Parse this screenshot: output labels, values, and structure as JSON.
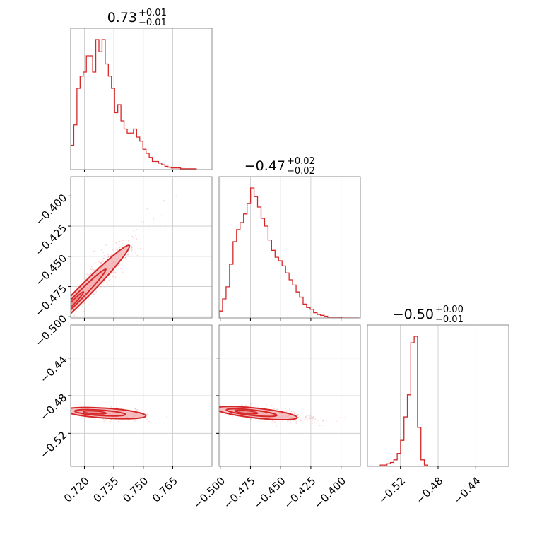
{
  "chart_data": {
    "type": "corner",
    "color": "#d62728",
    "fill_color": "#f4b2b4",
    "grid": true,
    "parameters": [
      {
        "title": {
          "median": "0.73",
          "upper": "+0.01",
          "lower": "−0.01"
        },
        "range": [
          0.713,
          0.785
        ],
        "ticks": [
          0.72,
          0.735,
          0.75,
          0.765
        ],
        "tick_labels": [
          "0.720",
          "0.735",
          "0.750",
          "0.765"
        ]
      },
      {
        "title": {
          "median": "−0.47",
          "upper": "+0.02",
          "lower": "−0.02"
        },
        "range": [
          -0.501,
          -0.384
        ],
        "ticks": [
          -0.5,
          -0.475,
          -0.45,
          -0.425,
          -0.4
        ],
        "tick_labels": [
          "−0.500",
          "−0.475",
          "−0.450",
          "−0.425",
          "−0.400"
        ]
      },
      {
        "title": {
          "median": "−0.50",
          "upper": "+0.00",
          "lower": "−0.01"
        },
        "range": [
          -0.555,
          -0.405
        ],
        "ticks": [
          -0.52,
          -0.48,
          -0.44
        ],
        "tick_labels": [
          "−0.52",
          "−0.48",
          "−0.44"
        ]
      }
    ],
    "histograms": [
      {
        "param": 0,
        "bin_start": 0.713,
        "bin_width": 0.0016,
        "counts": [
          30,
          55,
          100,
          115,
          120,
          140,
          140,
          120,
          160,
          145,
          160,
          130,
          115,
          100,
          70,
          80,
          60,
          50,
          45,
          45,
          50,
          40,
          35,
          25,
          20,
          15,
          10,
          10,
          8,
          6,
          4,
          3,
          2,
          2,
          2,
          1,
          1,
          1,
          1,
          1
        ]
      },
      {
        "param": 1,
        "bin_start": -0.501,
        "bin_width": 0.0029,
        "counts": [
          8,
          22,
          36,
          62,
          88,
          102,
          110,
          120,
          132,
          150,
          140,
          128,
          115,
          106,
          90,
          78,
          70,
          66,
          60,
          52,
          44,
          38,
          30,
          24,
          16,
          12,
          10,
          6,
          4,
          3,
          2,
          1,
          1,
          1,
          1,
          0,
          0,
          0,
          0,
          0
        ]
      },
      {
        "param": 2,
        "bin_start": -0.545,
        "bin_width": 0.0036,
        "counts": [
          0,
          1,
          1,
          2,
          3,
          5,
          10,
          20,
          38,
          55,
          95,
          100,
          30,
          5,
          1,
          0,
          0,
          0,
          0,
          0,
          0,
          0,
          0,
          0,
          0,
          0,
          0,
          0,
          0,
          0,
          0,
          0,
          0,
          0,
          0,
          0,
          0,
          0,
          0,
          0
        ]
      }
    ],
    "joint": [
      {
        "xparam": 0,
        "yparam": 1,
        "center": [
          0.7265,
          -0.468
        ],
        "slope": 1.65,
        "spread": 0.0065
      },
      {
        "xparam": 0,
        "yparam": 2,
        "center": [
          0.7305,
          -0.4985
        ],
        "slope": -0.14,
        "spread": 0.003
      },
      {
        "xparam": 1,
        "yparam": 2,
        "center": [
          -0.47,
          -0.4985
        ],
        "slope": -0.14,
        "spread": 0.003
      }
    ]
  }
}
